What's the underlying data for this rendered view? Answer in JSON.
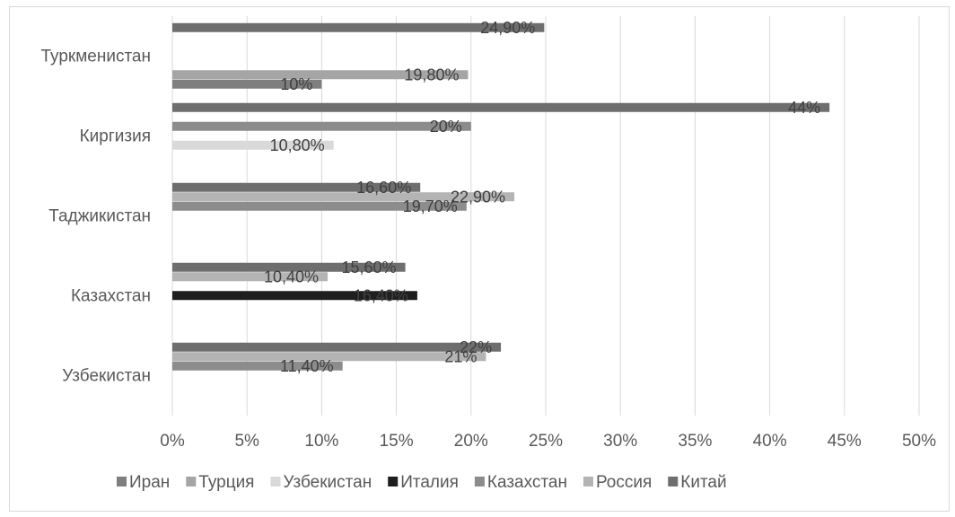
{
  "chart_data": {
    "type": "bar",
    "orientation": "horizontal",
    "categories": [
      "Узбекистан",
      "Казахстан",
      "Таджикистан",
      "Киргизия",
      "Туркменистан"
    ],
    "series": [
      {
        "name": "Иран",
        "color": "#7f7f7f",
        "values": [
          null,
          null,
          null,
          null,
          10
        ],
        "labels": [
          "",
          "",
          "",
          "",
          "10%"
        ]
      },
      {
        "name": "Турция",
        "color": "#a5a5a5",
        "values": [
          null,
          null,
          null,
          null,
          19.8
        ],
        "labels": [
          "",
          "",
          "",
          "",
          "19,80%"
        ]
      },
      {
        "name": "Узбекистан",
        "color": "#d9d9d9",
        "values": [
          null,
          null,
          null,
          10.8,
          null
        ],
        "labels": [
          "",
          "",
          "",
          "10,80%",
          ""
        ]
      },
      {
        "name": "Италия",
        "color": "#1e1e1e",
        "values": [
          null,
          16.4,
          null,
          null,
          null
        ],
        "labels": [
          "",
          "16,40%",
          "",
          "",
          ""
        ]
      },
      {
        "name": "Казахстан",
        "color": "#8c8c8c",
        "values": [
          11.4,
          null,
          19.7,
          20,
          null
        ],
        "labels": [
          "11,40%",
          "",
          "19,70%",
          "20%",
          ""
        ]
      },
      {
        "name": "Россия",
        "color": "#b4b4b4",
        "values": [
          21,
          10.4,
          22.9,
          null,
          null
        ],
        "labels": [
          "21%",
          "10,40%",
          "22,90%",
          "",
          ""
        ]
      },
      {
        "name": "Китай",
        "color": "#6e6e6e",
        "values": [
          22,
          15.6,
          16.6,
          44,
          24.9
        ],
        "labels": [
          "22%",
          "15,60%",
          "16,60%",
          "44%",
          "24,90%"
        ]
      }
    ],
    "xlim": [
      0,
      50
    ],
    "xticks": [
      "0%",
      "5%",
      "10%",
      "15%",
      "20%",
      "25%",
      "30%",
      "35%",
      "40%",
      "45%",
      "50%"
    ],
    "grid": true,
    "legend": "bottom",
    "title": "",
    "xlabel": "",
    "ylabel": ""
  }
}
